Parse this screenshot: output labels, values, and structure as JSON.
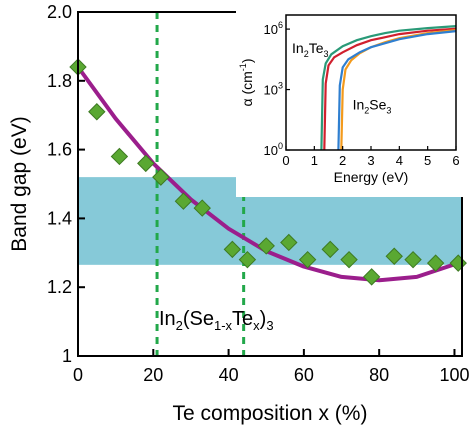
{
  "chart_data": [
    {
      "type": "scatter",
      "xlabel": "Te composition x (%)",
      "ylabel": "Band gap (eV)",
      "xlim": [
        0,
        102
      ],
      "ylim": [
        1.0,
        2.0
      ],
      "xticks": [
        0,
        20,
        40,
        60,
        80,
        100
      ],
      "yticks": [
        1.0,
        1.2,
        1.4,
        1.6,
        1.8,
        2.0
      ],
      "xtick_labels": [
        "0",
        "20",
        "40",
        "60",
        "80",
        "100"
      ],
      "ytick_labels": [
        "1",
        "1.2",
        "1.4",
        "1.6",
        "1.8",
        "2.0"
      ],
      "band": {
        "ymin": 1.265,
        "ymax": 1.52,
        "color": "#86c9d8"
      },
      "vlines": [
        {
          "x": 21,
          "color": "#22a84a"
        },
        {
          "x": 44,
          "color": "#22a84a"
        }
      ],
      "series": [
        {
          "kind": "markers",
          "marker": "diamond",
          "color": "#5aa832",
          "edge": "#3d7a22",
          "x": [
            0,
            5,
            11,
            18,
            22,
            28,
            33,
            41,
            45,
            50,
            56,
            61,
            67,
            72,
            78,
            84,
            89,
            95,
            101
          ],
          "y": [
            1.84,
            1.71,
            1.58,
            1.56,
            1.52,
            1.45,
            1.43,
            1.31,
            1.28,
            1.32,
            1.33,
            1.28,
            1.31,
            1.28,
            1.23,
            1.29,
            1.28,
            1.27,
            1.27
          ]
        },
        {
          "kind": "line",
          "color": "#9b1e8c",
          "x": [
            0,
            10,
            20,
            30,
            40,
            50,
            60,
            70,
            80,
            90,
            101
          ],
          "y": [
            1.84,
            1.69,
            1.56,
            1.455,
            1.37,
            1.305,
            1.26,
            1.23,
            1.22,
            1.23,
            1.27
          ]
        }
      ],
      "annotation": {
        "text_main": "In",
        "sub1": "2",
        "text_paren": "(Se",
        "sub2": "1-x",
        "text_te": "Te",
        "sub3": "x",
        "text_close": ")",
        "sub4": "3"
      }
    },
    {
      "type": "line",
      "xlabel": "Energy (eV)",
      "ylabel": "α (cm",
      "ylabel_sup": "-1",
      "ylabel_close": ")",
      "xlim": [
        0,
        6
      ],
      "ylim_log10": [
        0,
        6.7
      ],
      "yscale": "log",
      "xticks": [
        0,
        1,
        2,
        3,
        4,
        5,
        6
      ],
      "xtick_labels": [
        "0",
        "1",
        "2",
        "3",
        "4",
        "5",
        "6"
      ],
      "yticks_log10": [
        0,
        3,
        6
      ],
      "ytick_base": "10",
      "ytick_exponents": [
        "0",
        "3",
        "6"
      ],
      "series": [
        {
          "color": "#2a9a78",
          "x": [
            1.25,
            1.3,
            1.4,
            1.6,
            2.0,
            2.5,
            3.0,
            3.5,
            4.0,
            5.0,
            6.0
          ],
          "log10y": [
            0,
            3.5,
            4.3,
            4.75,
            5.15,
            5.45,
            5.65,
            5.8,
            5.92,
            6.05,
            6.15
          ]
        },
        {
          "color": "#d0202e",
          "x": [
            1.35,
            1.4,
            1.5,
            1.7,
            2.0,
            2.5,
            3.0,
            3.5,
            4.0,
            5.0,
            6.0
          ],
          "log10y": [
            0,
            3.3,
            4.2,
            4.6,
            4.85,
            5.2,
            5.45,
            5.6,
            5.75,
            5.92,
            6.02
          ]
        },
        {
          "color": "#f39a1c",
          "x": [
            1.95,
            2.0,
            2.1,
            2.3,
            2.6,
            3.0,
            3.5,
            4.0,
            5.0,
            6.0
          ],
          "log10y": [
            0,
            3.0,
            4.0,
            4.45,
            4.8,
            5.1,
            5.35,
            5.55,
            5.8,
            5.95
          ]
        },
        {
          "color": "#2f7fd0",
          "x": [
            1.85,
            1.9,
            2.0,
            2.2,
            2.6,
            3.0,
            3.5,
            4.0,
            5.0,
            6.0
          ],
          "log10y": [
            0,
            3.2,
            4.1,
            4.5,
            4.85,
            5.1,
            5.3,
            5.5,
            5.75,
            5.9
          ]
        }
      ],
      "labels": [
        {
          "main": "In",
          "sub": "2",
          "rest": "Te",
          "sub2": "3"
        },
        {
          "main": "In",
          "sub": "2",
          "rest": "Se",
          "sub2": "3"
        }
      ]
    }
  ]
}
